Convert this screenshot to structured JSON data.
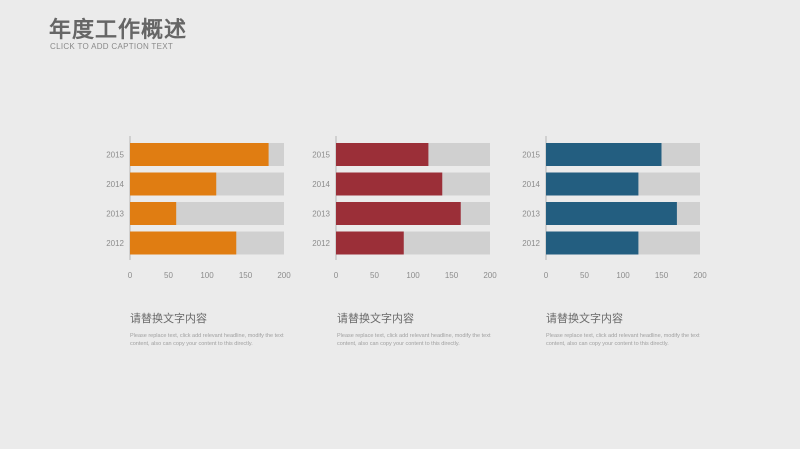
{
  "header": {
    "title": "年度工作概述",
    "subtitle": "CLICK TO ADD CAPTION TEXT"
  },
  "chart_data": [
    {
      "type": "bar",
      "orientation": "horizontal",
      "stacked_background": true,
      "categories": [
        "2015",
        "2014",
        "2013",
        "2012"
      ],
      "values": [
        180,
        112,
        60,
        138
      ],
      "background_value": 200,
      "xlim": [
        0,
        200
      ],
      "xticks": [
        "0",
        "50",
        "100",
        "150",
        "200"
      ],
      "color": "#e07d12",
      "background_color": "#d0d0d0"
    },
    {
      "type": "bar",
      "orientation": "horizontal",
      "stacked_background": true,
      "categories": [
        "2015",
        "2014",
        "2013",
        "2012"
      ],
      "values": [
        120,
        138,
        162,
        88
      ],
      "background_value": 200,
      "xlim": [
        0,
        200
      ],
      "xticks": [
        "0",
        "50",
        "100",
        "150",
        "200"
      ],
      "color": "#9b2f38",
      "background_color": "#d0d0d0"
    },
    {
      "type": "bar",
      "orientation": "horizontal",
      "stacked_background": true,
      "categories": [
        "2015",
        "2014",
        "2013",
        "2012"
      ],
      "values": [
        150,
        120,
        170,
        120
      ],
      "background_value": 200,
      "xlim": [
        0,
        200
      ],
      "xticks": [
        "0",
        "50",
        "100",
        "150",
        "200"
      ],
      "color": "#235e80",
      "background_color": "#d0d0d0"
    }
  ],
  "captions": [
    {
      "title": "请替换文字内容",
      "body": "Please replace text, click add relevant headline, modify the text content, also can copy your content to this directly."
    },
    {
      "title": "请替换文字内容",
      "body": "Please replace text, click add relevant headline, modify the text content, also can copy your content to this directly."
    },
    {
      "title": "请替换文字内容",
      "body": "Please replace text, click add relevant headline, modify the text content, also can copy your content to this directly."
    }
  ]
}
